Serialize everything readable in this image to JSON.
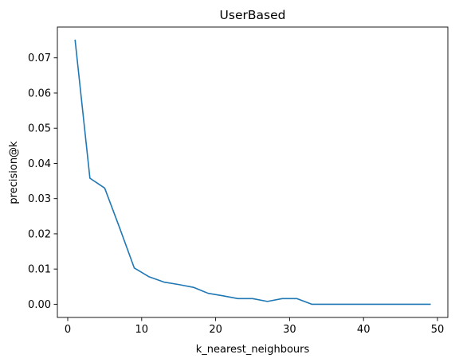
{
  "chart_data": {
    "type": "line",
    "title": "UserBased",
    "xlabel": "k_nearest_neighbours",
    "ylabel": "precision@k",
    "xlim": [
      -1.4,
      51.4
    ],
    "ylim": [
      -0.00375,
      0.07875
    ],
    "x_ticks": [
      0,
      10,
      20,
      30,
      40,
      50
    ],
    "y_ticks": [
      0.0,
      0.01,
      0.02,
      0.03,
      0.04,
      0.05,
      0.06,
      0.07
    ],
    "x_tick_labels": [
      "0",
      "10",
      "20",
      "30",
      "40",
      "50"
    ],
    "y_tick_labels": [
      "0.00",
      "0.01",
      "0.02",
      "0.03",
      "0.04",
      "0.05",
      "0.06",
      "0.07"
    ],
    "grid": false,
    "series": [
      {
        "color": "#1f77b4",
        "x": [
          1,
          3,
          5,
          7,
          9,
          11,
          13,
          15,
          17,
          19,
          21,
          23,
          25,
          27,
          29,
          31,
          33,
          35,
          37,
          39,
          41,
          43,
          45,
          47,
          49
        ],
        "y": [
          0.075,
          0.0358,
          0.033,
          0.0218,
          0.0103,
          0.0078,
          0.0063,
          0.0056,
          0.0048,
          0.0031,
          0.0024,
          0.0016,
          0.0016,
          0.0008,
          0.0016,
          0.0016,
          0.0,
          0.0,
          0.0,
          0.0,
          0.0,
          0.0,
          0.0,
          0.0,
          0.0
        ]
      }
    ]
  }
}
